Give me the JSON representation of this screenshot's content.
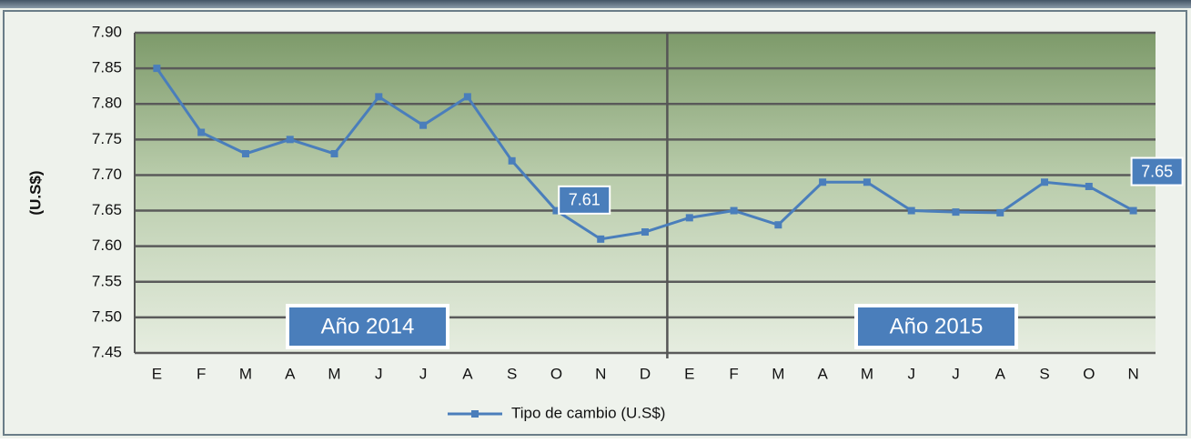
{
  "chart_data": {
    "type": "line",
    "y_label": "(U.S$)",
    "categories": [
      "E",
      "F",
      "M",
      "A",
      "M",
      "J",
      "J",
      "A",
      "S",
      "O",
      "N",
      "D",
      "E",
      "F",
      "M",
      "A",
      "M",
      "J",
      "J",
      "A",
      "S",
      "O",
      "N"
    ],
    "series": [
      {
        "name": "Tipo de cambio (U.S$)",
        "color": "#4a7ebb",
        "values": [
          7.85,
          7.76,
          7.73,
          7.75,
          7.73,
          7.81,
          7.77,
          7.81,
          7.72,
          7.65,
          7.61,
          7.62,
          7.64,
          7.65,
          7.63,
          7.69,
          7.69,
          7.65,
          7.648,
          7.647,
          7.69,
          7.684,
          7.65
        ],
        "value_labels": [
          null,
          null,
          null,
          null,
          null,
          null,
          null,
          null,
          null,
          null,
          "7.61",
          null,
          null,
          null,
          null,
          null,
          null,
          null,
          null,
          null,
          null,
          null,
          "7.65"
        ]
      }
    ],
    "annotations": [
      "Año 2014",
      "Año 2015"
    ],
    "ylim": [
      7.45,
      7.9
    ],
    "yticks": [
      7.45,
      {
        "value": 7.5,
        "label": "7.50"
      },
      7.55,
      {
        "value": 7.6,
        "label": "7.60"
      },
      7.65,
      {
        "value": 7.7,
        "label": "7.70"
      },
      7.75,
      {
        "value": 7.8,
        "label": "7.80"
      },
      7.85,
      {
        "value": 7.9,
        "label": "7.90"
      }
    ],
    "grid": true,
    "legend": "bottom"
  }
}
